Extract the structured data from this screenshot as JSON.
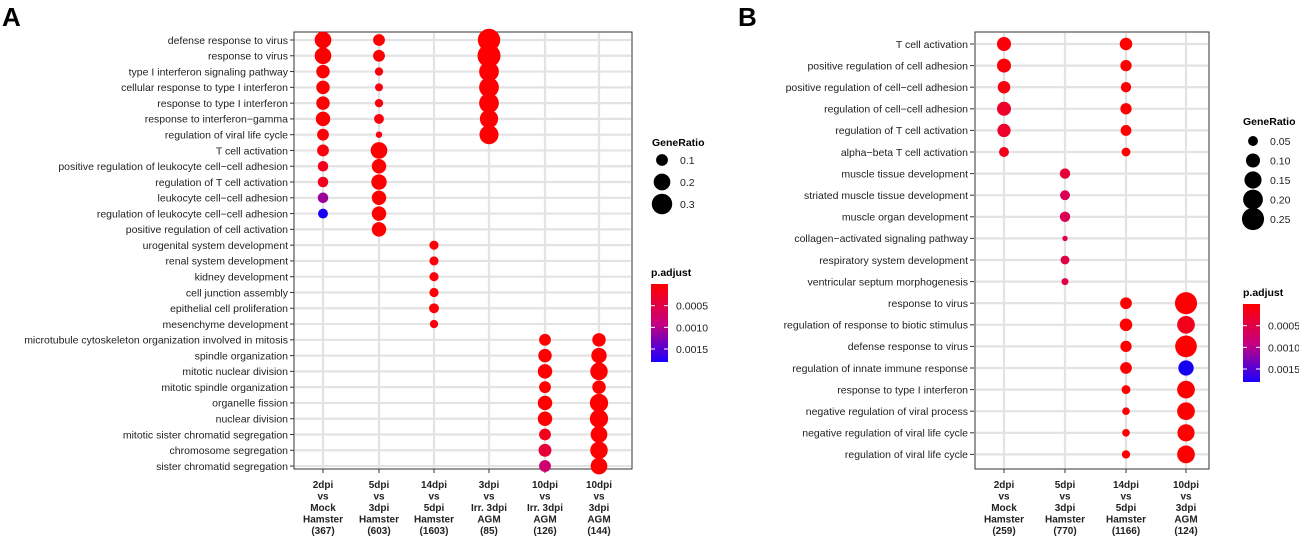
{
  "chart_data": [
    {
      "panel": "A",
      "type": "scatter",
      "subtype": "dot-plot",
      "columns": [
        [
          "2dpi",
          "vs",
          "Mock",
          "Hamster",
          "(367)"
        ],
        [
          "5dpi",
          "vs",
          "3dpi",
          "Hamster",
          "(603)"
        ],
        [
          "14dpi",
          "vs",
          "5dpi",
          "Hamster",
          "(1603)"
        ],
        [
          "3dpi",
          "vs",
          "Irr. 3dpi",
          "AGM",
          "(85)"
        ],
        [
          "10dpi",
          "vs",
          "Irr. 3dpi",
          "AGM",
          "(126)"
        ],
        [
          "10dpi",
          "vs",
          "3dpi",
          "AGM",
          "(144)"
        ]
      ],
      "terms": [
        "defense response to virus",
        "response to virus",
        "type I interferon signaling pathway",
        "cellular response to type I interferon",
        "response to type I interferon",
        "response to interferon−gamma",
        "regulation of viral life cycle",
        "T cell activation",
        "positive regulation of leukocyte cell−cell adhesion",
        "regulation of T cell activation",
        "leukocyte cell−cell adhesion",
        "regulation of leukocyte cell−cell adhesion",
        "positive regulation of cell activation",
        "urogenital system development",
        "renal system development",
        "kidney development",
        "cell junction assembly",
        "epithelial cell proliferation",
        "mesenchyme development",
        "microtubule cytoskeleton organization involved in mitosis",
        "spindle organization",
        "mitotic nuclear division",
        "mitotic spindle organization",
        "organelle fission",
        "nuclear division",
        "mitotic sister chromatid segregation",
        "chromosome segregation",
        "sister chromatid segregation"
      ],
      "points": [
        {
          "col": 0,
          "term": 0,
          "gene_ratio": 0.2,
          "p_adjust": 1e-05
        },
        {
          "col": 0,
          "term": 1,
          "gene_ratio": 0.2,
          "p_adjust": 1e-05
        },
        {
          "col": 0,
          "term": 2,
          "gene_ratio": 0.13,
          "p_adjust": 1e-05
        },
        {
          "col": 0,
          "term": 3,
          "gene_ratio": 0.13,
          "p_adjust": 1e-05
        },
        {
          "col": 0,
          "term": 4,
          "gene_ratio": 0.13,
          "p_adjust": 1e-05
        },
        {
          "col": 0,
          "term": 5,
          "gene_ratio": 0.15,
          "p_adjust": 1e-05
        },
        {
          "col": 0,
          "term": 6,
          "gene_ratio": 0.1,
          "p_adjust": 5e-05
        },
        {
          "col": 0,
          "term": 7,
          "gene_ratio": 0.1,
          "p_adjust": 0.0001
        },
        {
          "col": 0,
          "term": 8,
          "gene_ratio": 0.08,
          "p_adjust": 0.0002
        },
        {
          "col": 0,
          "term": 9,
          "gene_ratio": 0.08,
          "p_adjust": 0.0002
        },
        {
          "col": 0,
          "term": 10,
          "gene_ratio": 0.08,
          "p_adjust": 0.0011
        },
        {
          "col": 0,
          "term": 11,
          "gene_ratio": 0.07,
          "p_adjust": 0.0017
        },
        {
          "col": 1,
          "term": 0,
          "gene_ratio": 0.1,
          "p_adjust": 1e-05
        },
        {
          "col": 1,
          "term": 1,
          "gene_ratio": 0.1,
          "p_adjust": 1e-05
        },
        {
          "col": 1,
          "term": 2,
          "gene_ratio": 0.05,
          "p_adjust": 0.0001
        },
        {
          "col": 1,
          "term": 3,
          "gene_ratio": 0.045,
          "p_adjust": 0.0001
        },
        {
          "col": 1,
          "term": 4,
          "gene_ratio": 0.05,
          "p_adjust": 0.0001
        },
        {
          "col": 1,
          "term": 5,
          "gene_ratio": 0.07,
          "p_adjust": 0.0001
        },
        {
          "col": 1,
          "term": 6,
          "gene_ratio": 0.03,
          "p_adjust": 0.0001
        },
        {
          "col": 1,
          "term": 7,
          "gene_ratio": 0.2,
          "p_adjust": 1e-05
        },
        {
          "col": 1,
          "term": 8,
          "gene_ratio": 0.15,
          "p_adjust": 1e-05
        },
        {
          "col": 1,
          "term": 9,
          "gene_ratio": 0.17,
          "p_adjust": 1e-05
        },
        {
          "col": 1,
          "term": 10,
          "gene_ratio": 0.15,
          "p_adjust": 1e-05
        },
        {
          "col": 1,
          "term": 11,
          "gene_ratio": 0.15,
          "p_adjust": 1e-05
        },
        {
          "col": 1,
          "term": 12,
          "gene_ratio": 0.15,
          "p_adjust": 1e-05
        },
        {
          "col": 2,
          "term": 13,
          "gene_ratio": 0.06,
          "p_adjust": 5e-05
        },
        {
          "col": 2,
          "term": 14,
          "gene_ratio": 0.06,
          "p_adjust": 5e-05
        },
        {
          "col": 2,
          "term": 15,
          "gene_ratio": 0.06,
          "p_adjust": 5e-05
        },
        {
          "col": 2,
          "term": 16,
          "gene_ratio": 0.06,
          "p_adjust": 5e-05
        },
        {
          "col": 2,
          "term": 17,
          "gene_ratio": 0.07,
          "p_adjust": 5e-05
        },
        {
          "col": 2,
          "term": 18,
          "gene_ratio": 0.05,
          "p_adjust": 0.0001
        },
        {
          "col": 3,
          "term": 0,
          "gene_ratio": 0.36,
          "p_adjust": 1e-05
        },
        {
          "col": 3,
          "term": 1,
          "gene_ratio": 0.38,
          "p_adjust": 1e-05
        },
        {
          "col": 3,
          "term": 2,
          "gene_ratio": 0.28,
          "p_adjust": 1e-05
        },
        {
          "col": 3,
          "term": 3,
          "gene_ratio": 0.28,
          "p_adjust": 1e-05
        },
        {
          "col": 3,
          "term": 4,
          "gene_ratio": 0.28,
          "p_adjust": 1e-05
        },
        {
          "col": 3,
          "term": 5,
          "gene_ratio": 0.24,
          "p_adjust": 1e-05
        },
        {
          "col": 3,
          "term": 6,
          "gene_ratio": 0.26,
          "p_adjust": 1e-05
        },
        {
          "col": 4,
          "term": 19,
          "gene_ratio": 0.1,
          "p_adjust": 1e-05
        },
        {
          "col": 4,
          "term": 20,
          "gene_ratio": 0.13,
          "p_adjust": 1e-05
        },
        {
          "col": 4,
          "term": 21,
          "gene_ratio": 0.15,
          "p_adjust": 1e-05
        },
        {
          "col": 4,
          "term": 22,
          "gene_ratio": 0.1,
          "p_adjust": 1e-05
        },
        {
          "col": 4,
          "term": 23,
          "gene_ratio": 0.15,
          "p_adjust": 1e-05
        },
        {
          "col": 4,
          "term": 24,
          "gene_ratio": 0.15,
          "p_adjust": 1e-05
        },
        {
          "col": 4,
          "term": 25,
          "gene_ratio": 0.1,
          "p_adjust": 0.0002
        },
        {
          "col": 4,
          "term": 26,
          "gene_ratio": 0.12,
          "p_adjust": 0.0004
        },
        {
          "col": 4,
          "term": 27,
          "gene_ratio": 0.1,
          "p_adjust": 0.0008
        },
        {
          "col": 5,
          "term": 19,
          "gene_ratio": 0.13,
          "p_adjust": 1e-05
        },
        {
          "col": 5,
          "term": 20,
          "gene_ratio": 0.17,
          "p_adjust": 1e-05
        },
        {
          "col": 5,
          "term": 21,
          "gene_ratio": 0.22,
          "p_adjust": 1e-05
        },
        {
          "col": 5,
          "term": 22,
          "gene_ratio": 0.13,
          "p_adjust": 1e-05
        },
        {
          "col": 5,
          "term": 23,
          "gene_ratio": 0.24,
          "p_adjust": 1e-05
        },
        {
          "col": 5,
          "term": 24,
          "gene_ratio": 0.24,
          "p_adjust": 1e-05
        },
        {
          "col": 5,
          "term": 25,
          "gene_ratio": 0.2,
          "p_adjust": 1e-05
        },
        {
          "col": 5,
          "term": 26,
          "gene_ratio": 0.22,
          "p_adjust": 1e-05
        },
        {
          "col": 5,
          "term": 27,
          "gene_ratio": 0.2,
          "p_adjust": 1e-05
        }
      ],
      "legend": {
        "size_title": "GeneRatio",
        "size_values": [
          0.1,
          0.2,
          0.3
        ],
        "size_labels": [
          "0.1",
          "0.2",
          "0.3"
        ],
        "color_title": "p.adjust",
        "color_range": [
          0,
          0.0018
        ],
        "color_ticks": [
          0.0005,
          0.001,
          0.0015
        ],
        "color_labels": [
          "0.0005",
          "0.0010",
          "0.0015"
        ]
      },
      "size_domain": [
        0,
        0.38
      ],
      "colors": {
        "low": "#ff0000",
        "mid": "#c8007d",
        "high": "#0000ff"
      }
    },
    {
      "panel": "B",
      "type": "scatter",
      "subtype": "dot-plot",
      "columns": [
        [
          "2dpi",
          "vs",
          "Mock",
          "Hamster",
          "(259)"
        ],
        [
          "5dpi",
          "vs",
          "3dpi",
          "Hamster",
          "(770)"
        ],
        [
          "14dpi",
          "vs",
          "5dpi",
          "Hamster",
          "(1166)"
        ],
        [
          "10dpi",
          "vs",
          "3dpi",
          "AGM",
          "(124)"
        ]
      ],
      "terms": [
        "T cell activation",
        "positive regulation of cell adhesion",
        "positive regulation of cell−cell adhesion",
        "regulation of cell−cell adhesion",
        "regulation of T cell activation",
        "alpha−beta T cell activation",
        "muscle tissue development",
        "striated muscle tissue development",
        "muscle organ development",
        "collagen−activated signaling pathway",
        "respiratory system development",
        "ventricular septum morphogenesis",
        "response to virus",
        "regulation of response to biotic stimulus",
        "defense response to virus",
        "regulation of innate immune response",
        "response to type I interferon",
        "negative regulation of viral process",
        "negative regulation of viral life cycle",
        "regulation of viral life cycle"
      ],
      "points": [
        {
          "col": 0,
          "term": 0,
          "gene_ratio": 0.1,
          "p_adjust": 5e-05
        },
        {
          "col": 0,
          "term": 1,
          "gene_ratio": 0.1,
          "p_adjust": 5e-05
        },
        {
          "col": 0,
          "term": 2,
          "gene_ratio": 0.08,
          "p_adjust": 0.0001
        },
        {
          "col": 0,
          "term": 3,
          "gene_ratio": 0.1,
          "p_adjust": 0.0003
        },
        {
          "col": 0,
          "term": 4,
          "gene_ratio": 0.09,
          "p_adjust": 0.0003
        },
        {
          "col": 0,
          "term": 5,
          "gene_ratio": 0.05,
          "p_adjust": 0.0002
        },
        {
          "col": 1,
          "term": 6,
          "gene_ratio": 0.055,
          "p_adjust": 0.0004
        },
        {
          "col": 1,
          "term": 7,
          "gene_ratio": 0.05,
          "p_adjust": 0.0006
        },
        {
          "col": 1,
          "term": 8,
          "gene_ratio": 0.055,
          "p_adjust": 0.0006
        },
        {
          "col": 1,
          "term": 9,
          "gene_ratio": 0.015,
          "p_adjust": 0.0005
        },
        {
          "col": 1,
          "term": 10,
          "gene_ratio": 0.04,
          "p_adjust": 0.0005
        },
        {
          "col": 1,
          "term": 11,
          "gene_ratio": 0.025,
          "p_adjust": 0.0005
        },
        {
          "col": 2,
          "term": 0,
          "gene_ratio": 0.08,
          "p_adjust": 1e-05
        },
        {
          "col": 2,
          "term": 1,
          "gene_ratio": 0.065,
          "p_adjust": 1e-05
        },
        {
          "col": 2,
          "term": 2,
          "gene_ratio": 0.055,
          "p_adjust": 1e-05
        },
        {
          "col": 2,
          "term": 3,
          "gene_ratio": 0.065,
          "p_adjust": 1e-05
        },
        {
          "col": 2,
          "term": 4,
          "gene_ratio": 0.06,
          "p_adjust": 1e-05
        },
        {
          "col": 2,
          "term": 5,
          "gene_ratio": 0.04,
          "p_adjust": 1e-05
        },
        {
          "col": 2,
          "term": 12,
          "gene_ratio": 0.07,
          "p_adjust": 1e-05
        },
        {
          "col": 2,
          "term": 13,
          "gene_ratio": 0.08,
          "p_adjust": 1e-05
        },
        {
          "col": 2,
          "term": 14,
          "gene_ratio": 0.065,
          "p_adjust": 1e-05
        },
        {
          "col": 2,
          "term": 15,
          "gene_ratio": 0.07,
          "p_adjust": 1e-05
        },
        {
          "col": 2,
          "term": 16,
          "gene_ratio": 0.04,
          "p_adjust": 1e-05
        },
        {
          "col": 2,
          "term": 17,
          "gene_ratio": 0.03,
          "p_adjust": 1e-05
        },
        {
          "col": 2,
          "term": 18,
          "gene_ratio": 0.03,
          "p_adjust": 1e-05
        },
        {
          "col": 2,
          "term": 19,
          "gene_ratio": 0.035,
          "p_adjust": 1e-05
        },
        {
          "col": 3,
          "term": 12,
          "gene_ratio": 0.25,
          "p_adjust": 1e-05
        },
        {
          "col": 3,
          "term": 13,
          "gene_ratio": 0.16,
          "p_adjust": 0.0002
        },
        {
          "col": 3,
          "term": 14,
          "gene_ratio": 0.24,
          "p_adjust": 1e-05
        },
        {
          "col": 3,
          "term": 15,
          "gene_ratio": 0.12,
          "p_adjust": 0.0017
        },
        {
          "col": 3,
          "term": 16,
          "gene_ratio": 0.16,
          "p_adjust": 1e-05
        },
        {
          "col": 3,
          "term": 17,
          "gene_ratio": 0.16,
          "p_adjust": 1e-05
        },
        {
          "col": 3,
          "term": 18,
          "gene_ratio": 0.15,
          "p_adjust": 1e-05
        },
        {
          "col": 3,
          "term": 19,
          "gene_ratio": 0.16,
          "p_adjust": 1e-05
        }
      ],
      "legend": {
        "size_title": "GeneRatio",
        "size_values": [
          0.05,
          0.1,
          0.15,
          0.2,
          0.25
        ],
        "size_labels": [
          "0.05",
          "0.10",
          "0.15",
          "0.20",
          "0.25"
        ],
        "color_title": "p.adjust",
        "color_range": [
          0,
          0.0018
        ],
        "color_ticks": [
          0.0005,
          0.001,
          0.0015
        ],
        "color_labels": [
          "0.0005",
          "0.0010",
          "0.0015"
        ]
      },
      "size_domain": [
        0,
        0.27
      ],
      "colors": {
        "low": "#ff0000",
        "mid": "#c8007d",
        "high": "#0000ff"
      }
    }
  ]
}
